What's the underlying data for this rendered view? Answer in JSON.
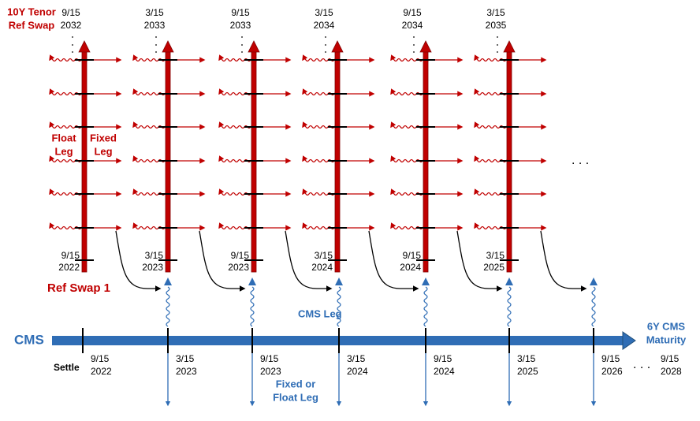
{
  "ref_swap_labels": {
    "tenor": [
      "10Y Tenor",
      "Ref Swap"
    ],
    "first": "Ref Swap 1",
    "float_leg": [
      "Float",
      "Leg"
    ],
    "fixed_leg": [
      "Fixed",
      "Leg"
    ],
    "more": ". . ."
  },
  "ref_swaps": [
    {
      "end": [
        "9/15",
        "2032"
      ],
      "start": [
        "9/15",
        "2022"
      ]
    },
    {
      "end": [
        "3/15",
        "2033"
      ],
      "start": [
        "3/15",
        "2023"
      ]
    },
    {
      "end": [
        "9/15",
        "2033"
      ],
      "start": [
        "9/15",
        "2023"
      ]
    },
    {
      "end": [
        "3/15",
        "2034"
      ],
      "start": [
        "3/15",
        "2024"
      ]
    },
    {
      "end": [
        "9/15",
        "2034"
      ],
      "start": [
        "9/15",
        "2024"
      ]
    },
    {
      "end": [
        "3/15",
        "2035"
      ],
      "start": [
        "3/15",
        "2025"
      ]
    }
  ],
  "cms": {
    "label": "CMS",
    "leg": "CMS Leg",
    "payment_leg": [
      "Fixed or",
      "Float Leg"
    ],
    "maturity": [
      "6Y CMS",
      "Maturity"
    ],
    "settle": "Settle",
    "dates": [
      [
        "9/15",
        "2022"
      ],
      [
        "3/15",
        "2023"
      ],
      [
        "9/15",
        "2023"
      ],
      [
        "3/15",
        "2024"
      ],
      [
        "9/15",
        "2024"
      ],
      [
        "3/15",
        "2025"
      ],
      [
        "9/15",
        "2026"
      ]
    ],
    "more": ". . .",
    "final_date": [
      "9/15",
      "2028"
    ]
  }
}
